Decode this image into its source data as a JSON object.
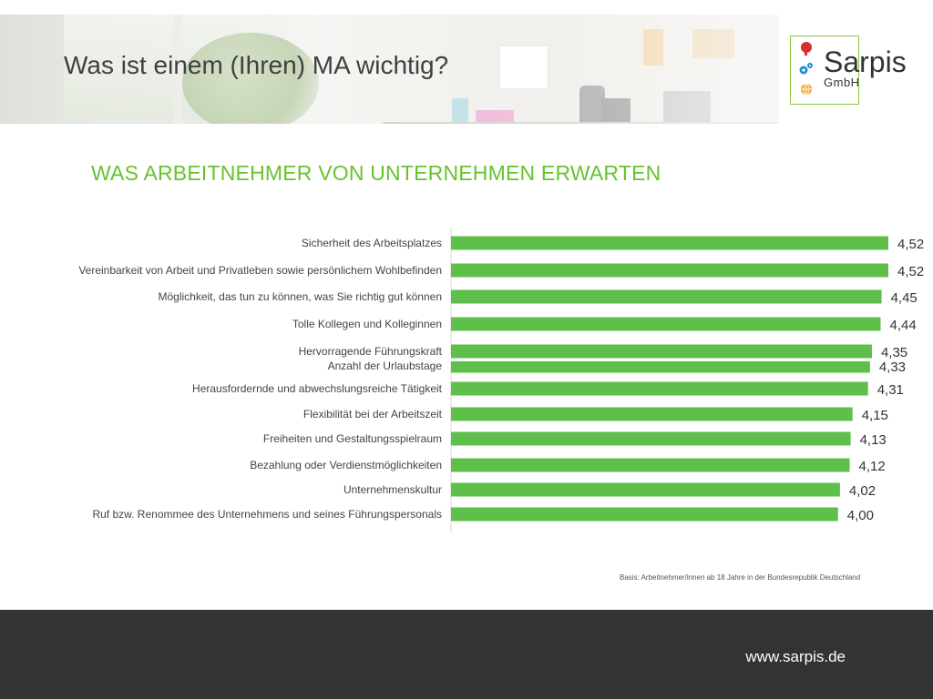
{
  "slide": {
    "title": "Was ist einem (Ihren) MA wichtig?"
  },
  "logo": {
    "name": "Sarpis",
    "suffix": "GmbH",
    "accent_color": "#8cc63f",
    "icons": [
      "head-icon",
      "gears-icon",
      "globe-icon"
    ]
  },
  "chart_data": {
    "type": "bar",
    "orientation": "horizontal",
    "title": "WAS ARBEITNEHMER VON UNTERNEHMEN ERWARTEN",
    "bar_color": "#5ec04a",
    "title_color": "#66c32e",
    "categories": [
      "Sicherheit des Arbeitsplatzes",
      "Vereinbarkeit von Arbeit und Privatleben sowie persönlichem Wohlbefinden",
      "Möglichkeit, das tun zu können, was Sie richtig gut können",
      "Tolle Kollegen und Kolleginnen",
      "Hervorragende Führungskraft",
      "Anzahl der Urlaubstage",
      "Herausfordernde und abwechslungsreiche Tätigkeit",
      "Flexibilität bei der Arbeitszeit",
      "Freiheiten und Gestaltungsspielraum",
      "Bezahlung oder Verdienstmöglichkeiten",
      "Unternehmenskultur",
      "Ruf bzw. Renommee des Unternehmens und seines Führungspersonals"
    ],
    "values": [
      4.52,
      4.52,
      4.45,
      4.44,
      4.35,
      4.33,
      4.31,
      4.15,
      4.13,
      4.12,
      4.02,
      4.0
    ],
    "value_labels": [
      "4,52",
      "4,52",
      "4,45",
      "4,44",
      "4,35",
      "4,33",
      "4,31",
      "4,15",
      "4,13",
      "4,12",
      "4,02",
      "4,00"
    ],
    "partially_hidden_index": 5,
    "note": "Basis: Arbeitnehmer/innen ab 18 Jahre in der Bundesrepublik Deutschland"
  },
  "footer": {
    "url": "www.sarpis.de",
    "background": "#333333"
  }
}
